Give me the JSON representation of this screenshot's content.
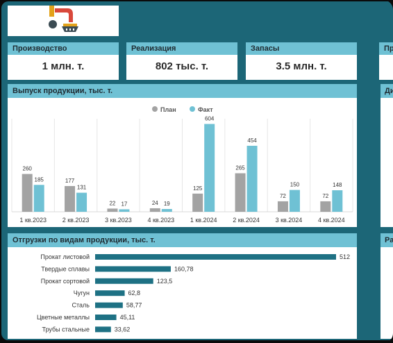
{
  "kpis": [
    {
      "label": "Производство",
      "value": "1 млн. т."
    },
    {
      "label": "Реализация",
      "value": "802 тыс. т."
    },
    {
      "label": "Запасы",
      "value": "3.5 млн. т."
    },
    {
      "label": "Пр",
      "value": ""
    }
  ],
  "panels": {
    "production_title": "Выпуск продукции, тыс. т.",
    "shipments_title": "Отгрузки по видам продукции, тыс. т.",
    "right_top_title": "Ди",
    "right_bottom_title": "Ра"
  },
  "colors": {
    "plan": "#a3a3a3",
    "fact": "#6fc1d4",
    "hbar": "#1e7184",
    "header": "#6fc1d4",
    "board": "#1c6677"
  },
  "chart_data": [
    {
      "type": "bar",
      "title": "Выпуск продукции, тыс. т.",
      "categories": [
        "1 кв.2023",
        "2 кв.2023",
        "3 кв.2023",
        "4 кв.2023",
        "1 кв.2024",
        "2 кв.2024",
        "3 кв.2024",
        "4 кв.2024"
      ],
      "series": [
        {
          "name": "План",
          "values": [
            260,
            177,
            22,
            24,
            125,
            265,
            72,
            72
          ]
        },
        {
          "name": "Факт",
          "values": [
            185,
            131,
            17,
            19,
            604,
            454,
            150,
            148
          ]
        }
      ],
      "legend": "top-center",
      "ylim": [
        0,
        640
      ],
      "grid": "vertical"
    },
    {
      "type": "bar",
      "orientation": "horizontal",
      "title": "Отгрузки по видам продукции, тыс. т.",
      "categories": [
        "Прокат листовой",
        "Твердые сплавы",
        "Прокат сортовой",
        "Чугун",
        "Сталь",
        "Цветные металлы",
        "Трубы стальные"
      ],
      "values": [
        512,
        160.78,
        123.5,
        62.8,
        58.77,
        45.11,
        33.62
      ],
      "value_labels": [
        "512",
        "160,78",
        "123,5",
        "62,8",
        "58,77",
        "45,11",
        "33,62"
      ]
    }
  ]
}
